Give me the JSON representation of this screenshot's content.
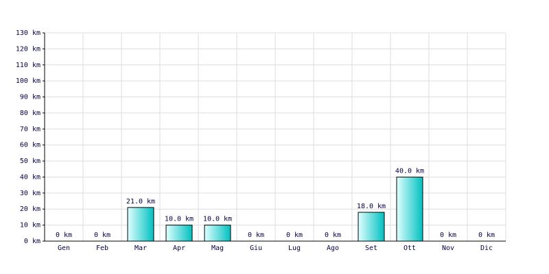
{
  "chart_data": {
    "type": "bar",
    "categories": [
      "Gen",
      "Feb",
      "Mar",
      "Apr",
      "Mag",
      "Giu",
      "Lug",
      "Ago",
      "Set",
      "Ott",
      "Nov",
      "Dic"
    ],
    "values": [
      0,
      0,
      21,
      10,
      10,
      0,
      0,
      0,
      18,
      40,
      0,
      0
    ],
    "value_labels": [
      "0 km",
      "0 km",
      "21.0 km",
      "10.0 km",
      "10.0 km",
      "0 km",
      "0 km",
      "0 km",
      "18.0 km",
      "40.0 km",
      "0 km",
      "0 km"
    ],
    "color": "#00c0c0",
    "ylim": [
      0,
      130
    ],
    "yticks": [
      {
        "value": 0,
        "label": "0 km"
      },
      {
        "value": 10,
        "label": "10 km"
      },
      {
        "value": 20,
        "label": "20 km"
      },
      {
        "value": 30,
        "label": "30 km"
      },
      {
        "value": 40,
        "label": "40 km"
      },
      {
        "value": 50,
        "label": "50 km"
      },
      {
        "value": 60,
        "label": "60 km"
      },
      {
        "value": 70,
        "label": "70 km"
      },
      {
        "value": 80,
        "label": "80 km"
      },
      {
        "value": 90,
        "label": "90 km"
      },
      {
        "value": 100,
        "label": "100 km"
      },
      {
        "value": 110,
        "label": "110 km"
      },
      {
        "value": 120,
        "label": "120 km"
      },
      {
        "value": 130,
        "label": "130 km"
      }
    ],
    "grid": true
  }
}
